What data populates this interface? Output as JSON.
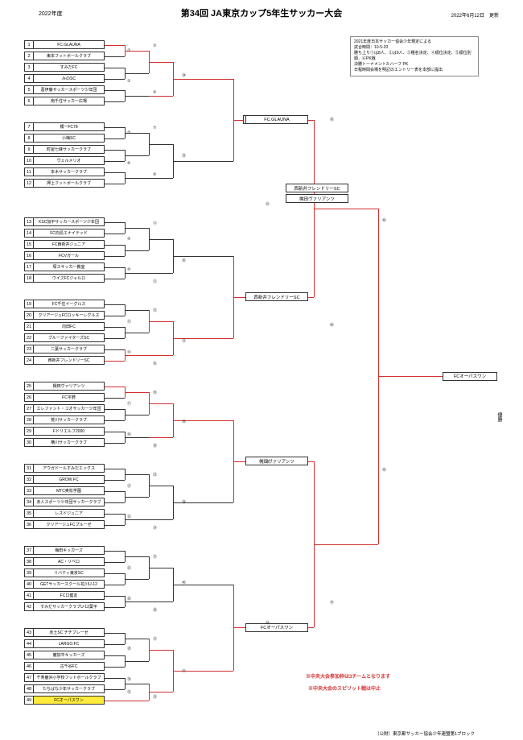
{
  "header": {
    "year": "2022年度",
    "title": "第34回 JA東京カップ5年生サッカー大会",
    "date": "2022年6月12日　更新"
  },
  "notes": {
    "line1": "2021年度日本サッカー協会少年規定による",
    "line2": "試合時間：10-5-20",
    "line3": "勝ち上り①は8人、②は9人、③種名決定、④順位決定、⑤順位別順、⑥PK戦",
    "line4": "決勝トーナメント3-ハーフ PK",
    "line5": "日程時間会場を明記のエントリー表を本部に提出"
  },
  "teams": [
    {
      "num": "1",
      "name": "FC.GLAUNA"
    },
    {
      "num": "2",
      "name": "東本フットボールクラブ"
    },
    {
      "num": "3",
      "name": "すみだFC"
    },
    {
      "num": "4",
      "name": "みのSC"
    },
    {
      "num": "5",
      "name": "葛伊藤サッカースポーツ少年団"
    },
    {
      "num": "6",
      "name": "南千住サッカー広場"
    },
    {
      "num": "7",
      "name": "橋一FC78"
    },
    {
      "num": "8",
      "name": "小梅SC"
    },
    {
      "num": "9",
      "name": "町屋七峰サッカークラブ"
    },
    {
      "num": "10",
      "name": "ヴェルメリオ"
    },
    {
      "num": "11",
      "name": "本木サッカークラブ"
    },
    {
      "num": "12",
      "name": "押上フットボールクラブ"
    },
    {
      "num": "13",
      "name": "KSC加平サッカースポーツ少年団"
    },
    {
      "num": "14",
      "name": "FC向島エナイテッド"
    },
    {
      "num": "15",
      "name": "FC西新井ジュニア"
    },
    {
      "num": "16",
      "name": "FCVガール"
    },
    {
      "num": "17",
      "name": "塚スサッカー教室"
    },
    {
      "num": "18",
      "name": "ウイズFCジャルロ"
    },
    {
      "num": "19",
      "name": "FC千住イーグルス"
    },
    {
      "num": "20",
      "name": "クリアージュFCロッキーレグルス"
    },
    {
      "num": "21",
      "name": "向田FC"
    },
    {
      "num": "22",
      "name": "ブルーファイターズSC"
    },
    {
      "num": "23",
      "name": "二葉サッカークラブ"
    },
    {
      "num": "24",
      "name": "西新井フレンドリーSC"
    },
    {
      "num": "25",
      "name": "幌田ヴァリアンツ"
    },
    {
      "num": "26",
      "name": "FC平野"
    },
    {
      "num": "27",
      "name": "エレファント・コオサッカー少年団"
    },
    {
      "num": "28",
      "name": "荒川サッカークラブ"
    },
    {
      "num": "29",
      "name": "Fドリエルフ2000"
    },
    {
      "num": "30",
      "name": "横川サッカークラブ"
    },
    {
      "num": "31",
      "name": "アウガドールすみだエッグス"
    },
    {
      "num": "32",
      "name": "GROW FC"
    },
    {
      "num": "33",
      "name": "MTC奥松学園"
    },
    {
      "num": "34",
      "name": "赤人スポーツ少年団サッカークラブ"
    },
    {
      "num": "35",
      "name": "レスドジュニア"
    },
    {
      "num": "36",
      "name": "クリアージュFCプルーゼ"
    },
    {
      "num": "37",
      "name": "梅田キッカーズ"
    },
    {
      "num": "38",
      "name": "AC・リベロ"
    },
    {
      "num": "39",
      "name": "リバティ東京SC"
    },
    {
      "num": "40",
      "name": "GETサッカースクール花川U-12"
    },
    {
      "num": "41",
      "name": "FC口健友"
    },
    {
      "num": "42",
      "name": "すみだサッカークラブU-12葉平"
    },
    {
      "num": "43",
      "name": "赤土SC チチブレーゼ"
    },
    {
      "num": "44",
      "name": "LARGO.FC"
    },
    {
      "num": "45",
      "name": "鹿加平キッカーズ"
    },
    {
      "num": "46",
      "name": "古千谷FC"
    },
    {
      "num": "47",
      "name": "千寿鹿浜小学校フットボールクラブ"
    },
    {
      "num": "48",
      "name": "たちばな少年サッカークラブ"
    },
    {
      "num": "49",
      "name": "FCオーパスワン"
    }
  ],
  "highlight_team": 49,
  "winners": {
    "r4_1": "FC.GLAUNA",
    "r4_2": "西新井フレンドリーSC",
    "qf1": "西新井フレンドリーSC",
    "qf2": "幌田ヴァリアンツ",
    "r4_3": "幌田ヴァリアンツ",
    "r4_4": "FCオーパスワン",
    "champion": "FCオーパスワン"
  },
  "red_notes": {
    "note1": "※中央大会参加枠は3チームとなります",
    "note2": "※中央大会のスピリット戦は中止"
  },
  "footer": "（公財）東京都サッカー協会少年連盟第1ブロック",
  "match_nums": [
    "①",
    "②",
    "③",
    "④",
    "⑤",
    "⑥",
    "⑦",
    "⑧",
    "⑨",
    "⑩",
    "⑪",
    "⑫",
    "⑬",
    "⑭",
    "⑮",
    "⑯",
    "⑰",
    "⑱",
    "⑲",
    "⑳",
    "㉑",
    "㉒",
    "㉓",
    "㉔",
    "㉕",
    "㉖",
    "㉗",
    "㉘",
    "㉙",
    "㉚",
    "㉛",
    "㉜",
    "㉝",
    "㉞",
    "㉟",
    "㊱",
    "㊲",
    "㊳",
    "㊴",
    "㊵",
    "㊶",
    "㊷",
    "㊸",
    "㊹",
    "㊺",
    "㊻",
    "㊼",
    "㊽",
    "㊾"
  ],
  "colors": {
    "win_path": "#d32f2f",
    "normal_path": "#333333",
    "highlight_bg": "#ffeb3b"
  }
}
